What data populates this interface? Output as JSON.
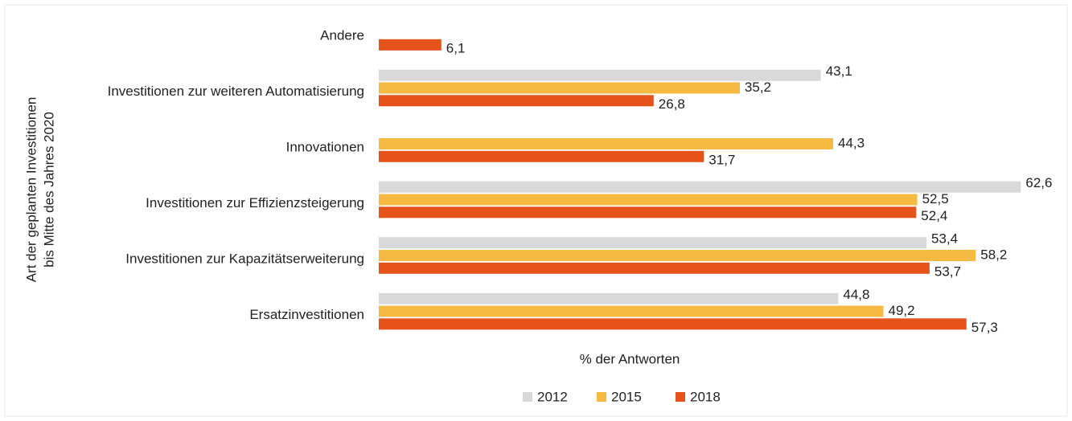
{
  "chart_data": {
    "type": "bar",
    "orientation": "horizontal",
    "xlabel": "% der Antworten",
    "ylabel": [
      "Art der geplanten Investitionen",
      "bis Mitte des Jahres 2020"
    ],
    "categories": [
      "Andere",
      "Investitionen zur weiteren Automatisierung",
      "Innovationen",
      "Investitionen zur Effizienzsteigerung",
      "Investitionen zur Kapazitätserweiterung",
      "Ersatzinvestitionen"
    ],
    "xlim": [
      0,
      65
    ],
    "series": [
      {
        "name": "2012",
        "color": "#d9d9d9",
        "values": [
          null,
          43.1,
          null,
          62.6,
          53.4,
          44.8
        ],
        "value_labels": [
          null,
          "43,1",
          null,
          "62,6",
          "53,4",
          "44,8"
        ]
      },
      {
        "name": "2015",
        "color": "#f6b942",
        "values": [
          null,
          35.2,
          44.3,
          52.5,
          58.2,
          49.2
        ],
        "value_labels": [
          null,
          "35,2",
          "44,3",
          "52,5",
          "58,2",
          "49,2"
        ]
      },
      {
        "name": "2018",
        "color": "#e5531a",
        "values": [
          6.1,
          26.8,
          31.7,
          52.4,
          53.7,
          57.3
        ],
        "value_labels": [
          "6,1",
          "26,8",
          "31,7",
          "52,4",
          "53,7",
          "57,3"
        ]
      }
    ],
    "legend": "bottom"
  }
}
